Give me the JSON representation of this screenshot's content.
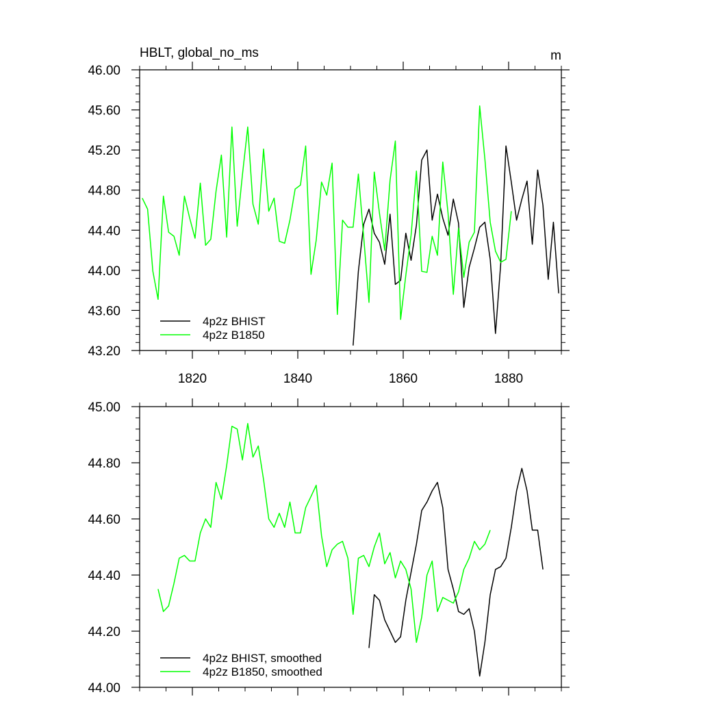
{
  "chart_data": [
    {
      "type": "line",
      "title": "HBLT, global_no_ms",
      "units_label": "m",
      "xlim": [
        1810,
        1890
      ],
      "ylim": [
        43.2,
        46.0
      ],
      "xticks": [
        1820,
        1840,
        1860,
        1880
      ],
      "xtick_labels": [
        "1820",
        "1840",
        "1860",
        "1880"
      ],
      "yticks": [
        43.2,
        43.6,
        44.0,
        44.4,
        44.8,
        45.2,
        45.6,
        46.0
      ],
      "ytick_labels": [
        "43.20",
        "43.60",
        "44.00",
        "44.40",
        "44.80",
        "45.20",
        "45.60",
        "46.00"
      ],
      "grid": false,
      "legend_position": "bottom-left",
      "series": [
        {
          "name": "4p2z BHIST",
          "color": "#000000",
          "x_start": 1850.5,
          "values": [
            43.25,
            43.99,
            44.46,
            44.61,
            44.37,
            44.28,
            44.06,
            44.56,
            43.86,
            43.9,
            44.37,
            44.1,
            44.45,
            45.1,
            45.2,
            44.5,
            44.76,
            44.52,
            44.35,
            44.71,
            44.47,
            43.63,
            44.03,
            44.22,
            44.43,
            44.48,
            44.11,
            43.37,
            44.06,
            45.24,
            44.88,
            44.5,
            44.71,
            44.89,
            44.26,
            45.0,
            44.65,
            43.91,
            44.48,
            43.77
          ]
        },
        {
          "name": "4p2z B1850",
          "color": "#00ff00",
          "x_start": 1810.5,
          "values": [
            44.72,
            44.61,
            43.99,
            43.71,
            44.74,
            44.38,
            44.34,
            44.15,
            44.74,
            44.52,
            44.32,
            44.87,
            44.25,
            44.31,
            44.79,
            45.15,
            44.33,
            45.43,
            44.44,
            44.95,
            45.43,
            44.66,
            44.46,
            45.21,
            44.59,
            44.72,
            44.29,
            44.27,
            44.5,
            44.81,
            44.85,
            45.24,
            43.96,
            44.3,
            44.88,
            44.75,
            45.07,
            43.56,
            44.5,
            44.43,
            44.43,
            44.96,
            44.33,
            43.68,
            44.98,
            44.57,
            44.2,
            44.9,
            45.29,
            43.51,
            43.95,
            44.35,
            44.99,
            43.99,
            43.98,
            44.34,
            44.15,
            45.08,
            44.57,
            43.76,
            44.42,
            43.93,
            44.28,
            44.38,
            45.64,
            45.11,
            44.48,
            44.19,
            44.08,
            44.11,
            44.59
          ]
        }
      ]
    },
    {
      "type": "line",
      "title": "",
      "xlim": [
        1810,
        1890
      ],
      "ylim": [
        44.0,
        45.0
      ],
      "xticks": [
        1820,
        1840,
        1860,
        1880
      ],
      "yticks": [
        44.0,
        44.2,
        44.4,
        44.6,
        44.8,
        45.0
      ],
      "ytick_labels": [
        "44.00",
        "44.20",
        "44.40",
        "44.60",
        "44.80",
        "45.00"
      ],
      "grid": false,
      "legend_position": "bottom-left",
      "series": [
        {
          "name": "4p2z BHIST, smoothed",
          "color": "#000000",
          "x_start": 1853.5,
          "values": [
            44.14,
            44.33,
            44.31,
            44.24,
            44.2,
            44.16,
            44.18,
            44.31,
            44.41,
            44.51,
            44.63,
            44.66,
            44.7,
            44.73,
            44.64,
            44.42,
            44.35,
            44.27,
            44.26,
            44.28,
            44.2,
            44.04,
            44.16,
            44.33,
            44.42,
            44.43,
            44.46,
            44.57,
            44.7,
            44.78,
            44.7,
            44.56,
            44.56,
            44.42
          ]
        },
        {
          "name": "4p2z B1850, smoothed",
          "color": "#00ff00",
          "x_start": 1813.5,
          "values": [
            44.35,
            44.27,
            44.29,
            44.37,
            44.46,
            44.47,
            44.45,
            44.45,
            44.55,
            44.6,
            44.57,
            44.73,
            44.67,
            44.79,
            44.93,
            44.92,
            44.81,
            44.94,
            44.82,
            44.86,
            44.74,
            44.6,
            44.57,
            44.62,
            44.57,
            44.66,
            44.55,
            44.55,
            44.64,
            44.68,
            44.72,
            44.54,
            44.43,
            44.49,
            44.51,
            44.52,
            44.46,
            44.26,
            44.46,
            44.47,
            44.43,
            44.5,
            44.55,
            44.44,
            44.48,
            44.39,
            44.45,
            44.42,
            44.35,
            44.16,
            44.25,
            44.4,
            44.45,
            44.27,
            44.32,
            44.31,
            44.3,
            44.34,
            44.42,
            44.46,
            44.52,
            44.49,
            44.51,
            44.56
          ]
        }
      ]
    }
  ]
}
